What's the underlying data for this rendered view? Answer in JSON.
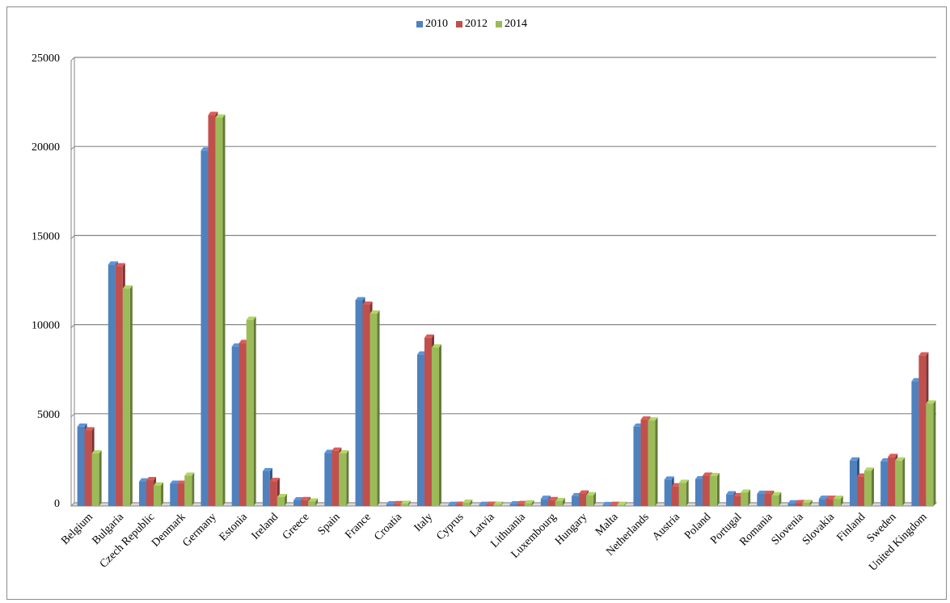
{
  "chart_data": {
    "type": "bar",
    "categories": [
      "Belgium",
      "Bulgaria",
      "Czech Republic",
      "Denmark",
      "Germany",
      "Estonia",
      "Ireland",
      "Greece",
      "Spain",
      "France",
      "Croatia",
      "Italy",
      "Cyprus",
      "Latvia",
      "Lithuania",
      "Luxembourg",
      "Hungary",
      "Malta",
      "Netherlands",
      "Austria",
      "Poland",
      "Portugal",
      "Romania",
      "Slovenia",
      "Slovakia",
      "Finland",
      "Sweden",
      "United Kingdom"
    ],
    "series": [
      {
        "name": "2010",
        "color": "#4f81bd",
        "values": [
          4450,
          13550,
          1380,
          1250,
          19950,
          8950,
          1950,
          320,
          2980,
          11550,
          90,
          8500,
          60,
          60,
          90,
          400,
          550,
          50,
          4450,
          1480,
          1500,
          650,
          680,
          150,
          400,
          2550,
          2500,
          7000
        ]
      },
      {
        "name": "2012",
        "color": "#c0504d",
        "values": [
          4250,
          13450,
          1450,
          1250,
          21950,
          9150,
          1400,
          330,
          3100,
          11300,
          100,
          9450,
          70,
          70,
          110,
          330,
          700,
          60,
          4850,
          1100,
          1700,
          550,
          680,
          160,
          400,
          1650,
          2750,
          8450
        ]
      },
      {
        "name": "2014",
        "color": "#9bbb59",
        "values": [
          2950,
          12200,
          1150,
          1700,
          21800,
          10450,
          500,
          250,
          2950,
          10800,
          120,
          8900,
          180,
          70,
          150,
          280,
          600,
          60,
          4800,
          1300,
          1680,
          750,
          600,
          170,
          400,
          1980,
          2550,
          5750
        ]
      }
    ],
    "yticks": [
      0,
      5000,
      10000,
      15000,
      20000,
      25000
    ],
    "ylim": [
      0,
      25000
    ],
    "title": "",
    "xlabel": "",
    "ylabel": "",
    "grid": true,
    "legend_position": "top-center"
  }
}
